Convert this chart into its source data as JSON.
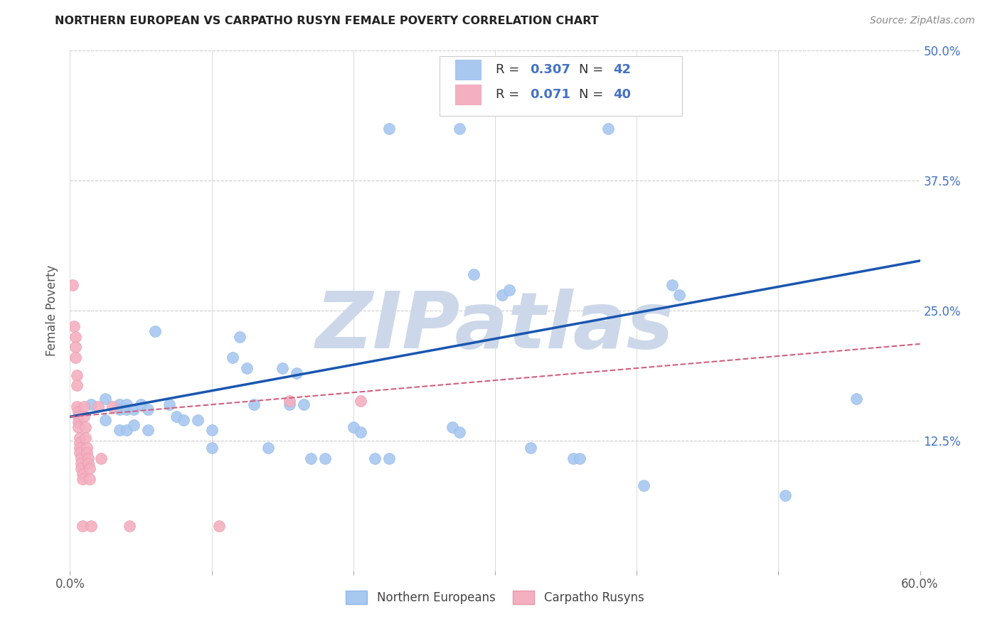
{
  "title": "NORTHERN EUROPEAN VS CARPATHO RUSYN FEMALE POVERTY CORRELATION CHART",
  "source": "Source: ZipAtlas.com",
  "ylabel": "Female Poverty",
  "xlim": [
    0.0,
    0.6
  ],
  "ylim": [
    0.0,
    0.5
  ],
  "xticks": [
    0.0,
    0.1,
    0.2,
    0.3,
    0.4,
    0.5,
    0.6
  ],
  "yticks": [
    0.0,
    0.125,
    0.25,
    0.375,
    0.5
  ],
  "background_color": "#ffffff",
  "grid_color": "#cccccc",
  "watermark_text": "ZIPatlas",
  "watermark_color": "#ccd8ea",
  "blue_color": "#a8c8f0",
  "blue_edge_color": "#90b8e8",
  "blue_line_color": "#1a56b0",
  "pink_color": "#f4b0c0",
  "pink_edge_color": "#e898aa",
  "pink_line_color": "#d06080",
  "tick_label_color": "#4472c4",
  "text_color": "#555555",
  "blue_scatter": [
    [
      0.015,
      0.16
    ],
    [
      0.025,
      0.145
    ],
    [
      0.025,
      0.165
    ],
    [
      0.035,
      0.16
    ],
    [
      0.035,
      0.155
    ],
    [
      0.035,
      0.135
    ],
    [
      0.04,
      0.16
    ],
    [
      0.04,
      0.155
    ],
    [
      0.04,
      0.135
    ],
    [
      0.045,
      0.155
    ],
    [
      0.045,
      0.14
    ],
    [
      0.05,
      0.16
    ],
    [
      0.055,
      0.155
    ],
    [
      0.055,
      0.135
    ],
    [
      0.06,
      0.23
    ],
    [
      0.07,
      0.16
    ],
    [
      0.075,
      0.148
    ],
    [
      0.08,
      0.145
    ],
    [
      0.09,
      0.145
    ],
    [
      0.1,
      0.135
    ],
    [
      0.1,
      0.118
    ],
    [
      0.115,
      0.205
    ],
    [
      0.12,
      0.225
    ],
    [
      0.125,
      0.195
    ],
    [
      0.13,
      0.16
    ],
    [
      0.14,
      0.118
    ],
    [
      0.15,
      0.195
    ],
    [
      0.155,
      0.16
    ],
    [
      0.16,
      0.19
    ],
    [
      0.165,
      0.16
    ],
    [
      0.17,
      0.108
    ],
    [
      0.18,
      0.108
    ],
    [
      0.2,
      0.138
    ],
    [
      0.205,
      0.133
    ],
    [
      0.215,
      0.108
    ],
    [
      0.225,
      0.108
    ],
    [
      0.27,
      0.138
    ],
    [
      0.275,
      0.133
    ],
    [
      0.285,
      0.285
    ],
    [
      0.305,
      0.265
    ],
    [
      0.31,
      0.27
    ],
    [
      0.325,
      0.118
    ],
    [
      0.355,
      0.108
    ],
    [
      0.36,
      0.108
    ],
    [
      0.405,
      0.082
    ],
    [
      0.425,
      0.275
    ],
    [
      0.43,
      0.265
    ],
    [
      0.505,
      0.072
    ],
    [
      0.555,
      0.165
    ],
    [
      0.225,
      0.425
    ],
    [
      0.275,
      0.425
    ],
    [
      0.38,
      0.425
    ]
  ],
  "pink_scatter": [
    [
      0.002,
      0.275
    ],
    [
      0.003,
      0.235
    ],
    [
      0.004,
      0.225
    ],
    [
      0.004,
      0.215
    ],
    [
      0.004,
      0.205
    ],
    [
      0.005,
      0.188
    ],
    [
      0.005,
      0.178
    ],
    [
      0.005,
      0.158
    ],
    [
      0.006,
      0.153
    ],
    [
      0.006,
      0.148
    ],
    [
      0.006,
      0.143
    ],
    [
      0.006,
      0.138
    ],
    [
      0.007,
      0.128
    ],
    [
      0.007,
      0.123
    ],
    [
      0.007,
      0.118
    ],
    [
      0.007,
      0.113
    ],
    [
      0.008,
      0.108
    ],
    [
      0.008,
      0.103
    ],
    [
      0.008,
      0.098
    ],
    [
      0.009,
      0.093
    ],
    [
      0.009,
      0.088
    ],
    [
      0.009,
      0.043
    ],
    [
      0.01,
      0.158
    ],
    [
      0.01,
      0.148
    ],
    [
      0.011,
      0.138
    ],
    [
      0.011,
      0.128
    ],
    [
      0.012,
      0.118
    ],
    [
      0.012,
      0.113
    ],
    [
      0.013,
      0.108
    ],
    [
      0.013,
      0.103
    ],
    [
      0.014,
      0.098
    ],
    [
      0.014,
      0.088
    ],
    [
      0.015,
      0.043
    ],
    [
      0.02,
      0.158
    ],
    [
      0.022,
      0.108
    ],
    [
      0.03,
      0.158
    ],
    [
      0.042,
      0.043
    ],
    [
      0.105,
      0.043
    ],
    [
      0.155,
      0.163
    ],
    [
      0.205,
      0.163
    ]
  ],
  "blue_trend_x": [
    0.0,
    0.6
  ],
  "blue_trend_y": [
    0.148,
    0.298
  ],
  "pink_trend_x": [
    0.0,
    0.6
  ],
  "pink_trend_y": [
    0.148,
    0.218
  ]
}
